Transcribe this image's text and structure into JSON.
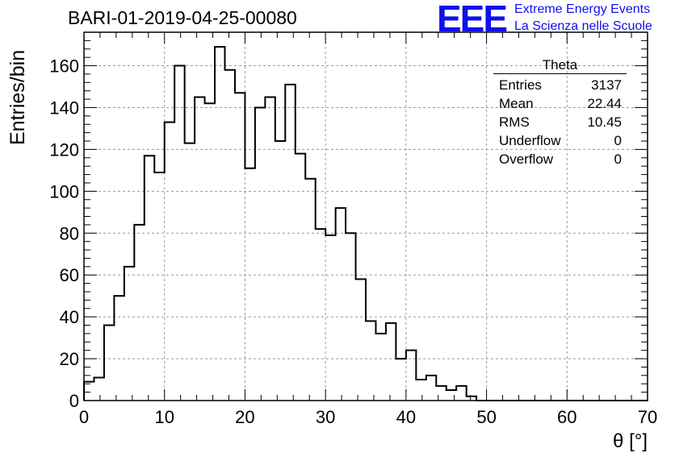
{
  "header": {
    "title": "BARI-01-2019-04-25-00080"
  },
  "logo": {
    "mark": "EEE",
    "line1": "Extreme Energy Events",
    "line2": "La Scienza nelle Scuole",
    "color": "#1010ee"
  },
  "stats_box": {
    "title": "Theta",
    "rows": [
      {
        "label": "Entries",
        "value": "3137"
      },
      {
        "label": "Mean",
        "value": "22.44"
      },
      {
        "label": "RMS",
        "value": "10.45"
      },
      {
        "label": "Underflow",
        "value": "0"
      },
      {
        "label": "Overflow",
        "value": "0"
      }
    ]
  },
  "chart_data": {
    "type": "bar",
    "style": "step-histogram",
    "title": "BARI-01-2019-04-25-00080",
    "xlabel": "θ [°]",
    "ylabel": "Entries/bin",
    "xlim": [
      0,
      70
    ],
    "ylim": [
      0,
      176
    ],
    "grid": true,
    "x_ticks": [
      0,
      10,
      20,
      30,
      40,
      50,
      60,
      70
    ],
    "y_ticks": [
      0,
      20,
      40,
      60,
      80,
      100,
      120,
      140,
      160
    ],
    "bin_width": 1.25,
    "bin_start": 0,
    "values": [
      9,
      11,
      36,
      50,
      64,
      84,
      117,
      109,
      133,
      160,
      123,
      145,
      142,
      169,
      158,
      147,
      111,
      140,
      145,
      124,
      151,
      118,
      106,
      82,
      79,
      92,
      80,
      58,
      38,
      32,
      37,
      20,
      24,
      10,
      12,
      7,
      5,
      7,
      2,
      0,
      0,
      0,
      0,
      0,
      0,
      0,
      0,
      0,
      0,
      0,
      0,
      0,
      0,
      0,
      0,
      0
    ],
    "line_color": "#000000"
  }
}
